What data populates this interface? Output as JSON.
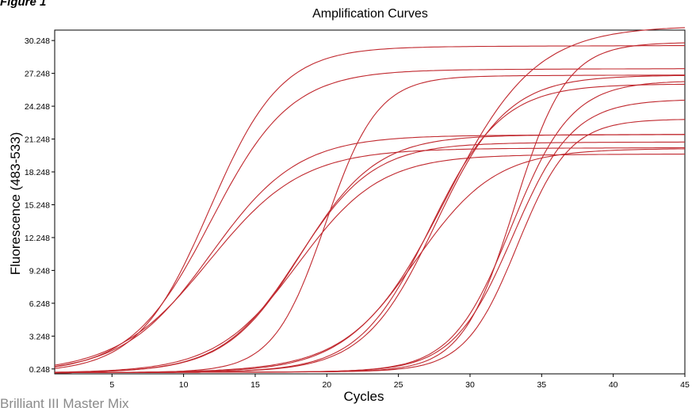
{
  "figure_label": "Figure 1",
  "caption": "Brilliant III Master Mix",
  "chart_data": {
    "type": "line",
    "title": "Amplification Curves",
    "xlabel": "Cycles",
    "ylabel": "Fluorescence (483-533)",
    "xlim": [
      1,
      45
    ],
    "ylim": [
      -0.2,
      31.2
    ],
    "xticks": [
      5,
      10,
      15,
      20,
      25,
      30,
      35,
      40,
      45
    ],
    "yticks": [
      0.248,
      3.248,
      6.248,
      9.248,
      12.248,
      15.248,
      18.248,
      21.248,
      24.248,
      27.248,
      30.248
    ],
    "ytick_labels": [
      "0.248",
      "3.248",
      "6.248",
      "9.248",
      "12.248",
      "15.248",
      "18.248",
      "21.248",
      "24.248",
      "27.248",
      "30.248"
    ],
    "grid": false,
    "series_color": "#c0282e",
    "series": [
      {
        "values": [
          -0.1,
          29.7,
          11.8,
          0.4,
          0.0042
        ]
      },
      {
        "values": [
          -0.1,
          27.6,
          11.9,
          0.36,
          0.004
        ]
      },
      {
        "values": [
          -0.1,
          21.6,
          11.9,
          0.33,
          0.0035
        ]
      },
      {
        "values": [
          -0.1,
          20.4,
          11.8,
          0.31,
          0.0035
        ]
      },
      {
        "values": [
          -0.1,
          27.0,
          19.9,
          0.55,
          0.0045
        ]
      },
      {
        "values": [
          -0.1,
          21.6,
          18.2,
          0.38,
          0.004
        ]
      },
      {
        "values": [
          -0.1,
          20.9,
          18.0,
          0.38,
          0.004
        ]
      },
      {
        "values": [
          -0.1,
          19.8,
          18.0,
          0.35,
          0.004
        ]
      },
      {
        "values": [
          -0.1,
          31.5,
          28.3,
          0.32,
          0.004
        ]
      },
      {
        "values": [
          -0.1,
          27.0,
          27.6,
          0.4,
          0.004
        ]
      },
      {
        "values": [
          -0.1,
          26.2,
          27.2,
          0.4,
          0.004
        ]
      },
      {
        "values": [
          -0.1,
          20.3,
          26.2,
          0.36,
          0.004
        ]
      },
      {
        "values": [
          -0.1,
          30.0,
          33.1,
          0.55,
          0.004
        ]
      },
      {
        "values": [
          -0.1,
          26.5,
          32.9,
          0.48,
          0.004
        ]
      },
      {
        "values": [
          -0.1,
          24.8,
          33.0,
          0.48,
          0.004
        ]
      },
      {
        "values": [
          -0.1,
          23.0,
          33.3,
          0.55,
          0.004
        ]
      }
    ],
    "series_model": "values = [baseline, plateau, Ct midpoint (cycles), slope (1/cycle), linear drift per cycle]"
  }
}
